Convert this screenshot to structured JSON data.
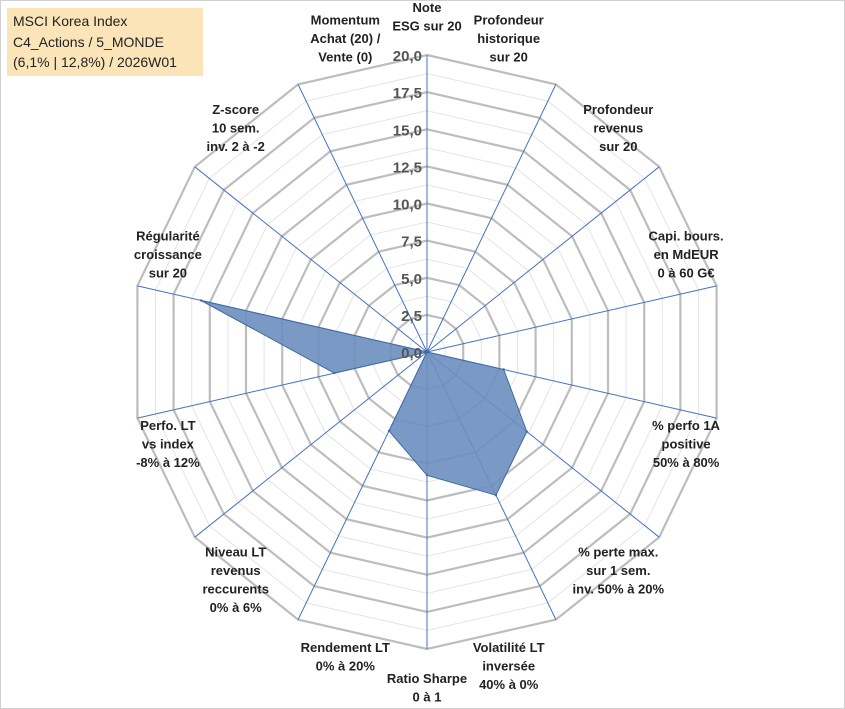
{
  "chart_data": {
    "type": "radar",
    "title_lines": [
      "MSCI Korea Index",
      "C4_Actions / 5_MONDE",
      "(6,1% | 12,8%) / 2026W01"
    ],
    "range": [
      0,
      20
    ],
    "ticks": [
      "0,0",
      "2,5",
      "5,0",
      "7,5",
      "10,0",
      "12,5",
      "15,0",
      "17,5",
      "20,0"
    ],
    "axes": [
      {
        "lines": [
          "Note",
          "ESG sur 20"
        ],
        "value": 0
      },
      {
        "lines": [
          "Profondeur",
          "historique",
          "sur 20"
        ],
        "value": 0
      },
      {
        "lines": [
          "Profondeur",
          "revenus",
          "sur 20"
        ],
        "value": 0
      },
      {
        "lines": [
          "Capi. bours.",
          "en MdEUR",
          "0 à 60 G€"
        ],
        "value": 0
      },
      {
        "lines": [
          "% perfo 1A",
          "positive",
          "50% à 80%"
        ],
        "value": 5.3
      },
      {
        "lines": [
          "% perte max.",
          "sur 1 sem.",
          "inv. 50% à 20%"
        ],
        "value": 8.6
      },
      {
        "lines": [
          "Volatilité LT",
          "inversée",
          "40% à 0%"
        ],
        "value": 10.7
      },
      {
        "lines": [
          "Ratio Sharpe",
          "0 à 1"
        ],
        "value": 8.3
      },
      {
        "lines": [
          "Rendement LT",
          "0% à 20%"
        ],
        "value": 5.9
      },
      {
        "lines": [
          "Niveau LT",
          "revenus",
          "reccurents",
          "0% à 6%"
        ],
        "value": 0
      },
      {
        "lines": [
          "Perfo. LT",
          "vs index",
          "-8% à 12%"
        ],
        "value": 6.4
      },
      {
        "lines": [
          "Régularité",
          "croissance",
          "sur 20"
        ],
        "value": 15.6
      },
      {
        "lines": [
          "Z-score",
          "10 sem.",
          "inv. 2 à -2"
        ],
        "value": 0
      },
      {
        "lines": [
          "Momentum",
          "Achat (20) /",
          "Vente (0)"
        ],
        "value": 0
      }
    ],
    "series_color": "#6b8fbf",
    "series_edge": "#3f6aa3",
    "grid_color": "#bdbdbd",
    "spoke_color": "#4472c4"
  }
}
